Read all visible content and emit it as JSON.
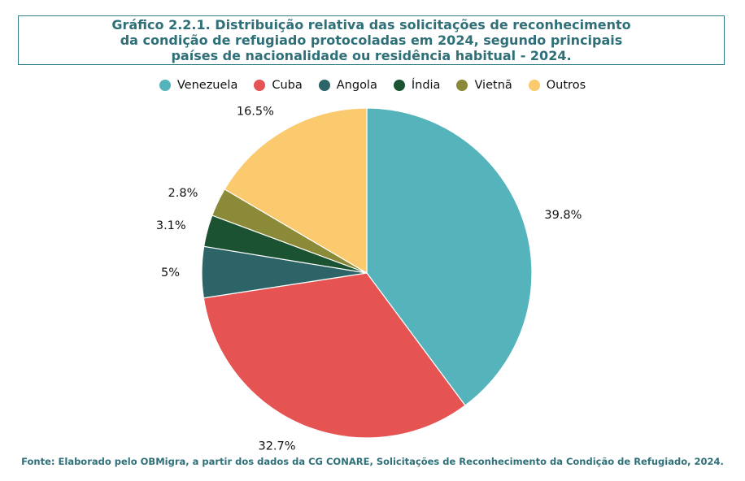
{
  "title": {
    "line1": "Gráfico 2.2.1. Distribuição relativa das solicitações de reconhecimento",
    "line2": "da condição de refugiado protocoladas em 2024, segundo principais",
    "line3": "países de nacionalidade ou residência habitual - 2024."
  },
  "source": "Fonte: Elaborado pelo OBMigra, a partir dos dados da CG CONARE, Solicitações de Reconhecimento da Condição de Refugiado, 2024.",
  "chart_data": {
    "type": "pie",
    "title": "Gráfico 2.2.1. Distribuição relativa das solicitações de reconhecimento da condição de refugiado protocoladas em 2024, segundo principais países de nacionalidade ou residência habitual - 2024.",
    "legend_position": "top",
    "slices": [
      {
        "name": "Venezuela",
        "value": 39.8,
        "label": "39.8%",
        "color": "#55b3bb"
      },
      {
        "name": "Cuba",
        "value": 32.7,
        "label": "32.7%",
        "color": "#e65353"
      },
      {
        "name": "Angola",
        "value": 5.0,
        "label": "5%",
        "color": "#2c6468"
      },
      {
        "name": "Índia",
        "value": 3.1,
        "label": "3.1%",
        "color": "#1b5232"
      },
      {
        "name": "Vietnã",
        "value": 2.8,
        "label": "2.8%",
        "color": "#8b8a38"
      },
      {
        "name": "Outros",
        "value": 16.5,
        "label": "16.5%",
        "color": "#fbc96e"
      }
    ]
  }
}
